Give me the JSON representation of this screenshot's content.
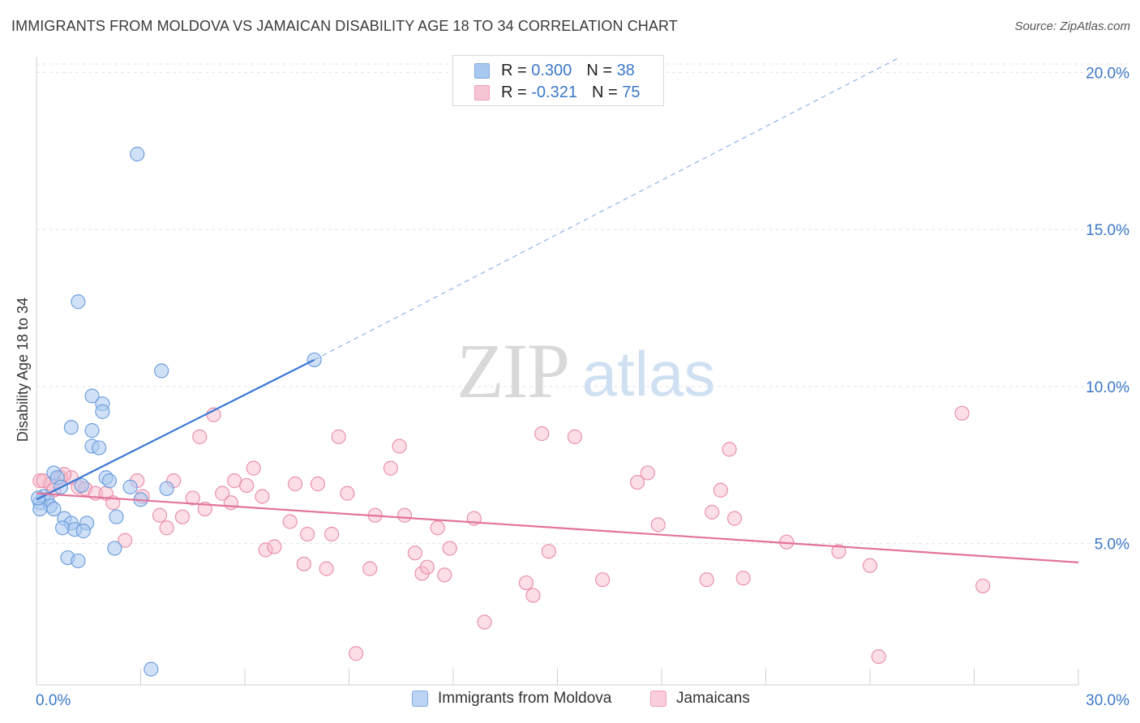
{
  "title": "IMMIGRANTS FROM MOLDOVA VS JAMAICAN DISABILITY AGE 18 TO 34 CORRELATION CHART",
  "source": "Source: ZipAtlas.com",
  "watermark": {
    "zip": "ZIP",
    "atlas": "atlas"
  },
  "legend": {
    "rows": [
      {
        "r_label": "R =",
        "r_value": "0.300",
        "n_label": "N =",
        "n_value": "38",
        "color": "#a9c8f0"
      },
      {
        "r_label": "R =",
        "r_value": "-0.321",
        "n_label": "N =",
        "n_value": "75",
        "color": "#f7b6c8"
      }
    ]
  },
  "bottom_legend": [
    "Immigrants from Moldova",
    "Jamaicans"
  ],
  "chart_data": {
    "type": "scatter",
    "title": "IMMIGRANTS FROM MOLDOVA VS JAMAICAN DISABILITY AGE 18 TO 34 CORRELATION CHART",
    "xlabel": "",
    "ylabel": "Disability Age 18 to 34",
    "xlim": [
      0,
      30
    ],
    "ylim": [
      0.5,
      20.5
    ],
    "x_tick_labels": [
      "0.0%",
      "30.0%"
    ],
    "y_tick_values": [
      5,
      10,
      15,
      20
    ],
    "y_tick_labels": [
      "5.0%",
      "10.0%",
      "15.0%",
      "20.0%"
    ],
    "grid": true,
    "legend_position": "top-center",
    "series": [
      {
        "name": "Immigrants from Moldova",
        "color": "#3b78d4",
        "fill": "#a9c8f0",
        "r": 0.3,
        "n": 38,
        "trend": {
          "x": [
            0,
            8.0
          ],
          "y": [
            6.4,
            10.85
          ],
          "extend_to": [
            24.8,
            20.45
          ]
        },
        "points": [
          [
            2.9,
            17.4
          ],
          [
            1.2,
            12.7
          ],
          [
            3.6,
            10.5
          ],
          [
            8.0,
            10.85
          ],
          [
            1.6,
            9.7
          ],
          [
            1.9,
            9.45
          ],
          [
            1.9,
            9.2
          ],
          [
            1.0,
            8.7
          ],
          [
            1.6,
            8.6
          ],
          [
            1.6,
            8.1
          ],
          [
            1.8,
            8.05
          ],
          [
            0.5,
            7.25
          ],
          [
            0.6,
            7.1
          ],
          [
            2.0,
            7.1
          ],
          [
            2.1,
            7.0
          ],
          [
            0.7,
            6.8
          ],
          [
            1.3,
            6.85
          ],
          [
            2.7,
            6.8
          ],
          [
            3.75,
            6.75
          ],
          [
            0.2,
            6.5
          ],
          [
            0.3,
            6.4
          ],
          [
            0.1,
            6.3
          ],
          [
            0.4,
            6.2
          ],
          [
            0.1,
            6.1
          ],
          [
            0.5,
            6.1
          ],
          [
            3.0,
            6.4
          ],
          [
            2.3,
            5.85
          ],
          [
            0.8,
            5.8
          ],
          [
            1.0,
            5.65
          ],
          [
            1.45,
            5.65
          ],
          [
            0.75,
            5.5
          ],
          [
            1.1,
            5.45
          ],
          [
            1.35,
            5.4
          ],
          [
            2.25,
            4.85
          ],
          [
            0.9,
            4.55
          ],
          [
            1.2,
            4.45
          ],
          [
            3.3,
            1.0
          ],
          [
            0.05,
            6.45
          ]
        ]
      },
      {
        "name": "Jamaicans",
        "color": "#e2739a",
        "fill": "#f7b6c8",
        "r": -0.321,
        "n": 75,
        "trend": {
          "x": [
            0,
            30
          ],
          "y": [
            6.6,
            4.4
          ]
        },
        "points": [
          [
            0.1,
            7.0
          ],
          [
            0.4,
            6.9
          ],
          [
            0.7,
            7.1
          ],
          [
            1.0,
            7.1
          ],
          [
            1.2,
            6.8
          ],
          [
            1.4,
            6.75
          ],
          [
            1.7,
            6.6
          ],
          [
            2.0,
            6.6
          ],
          [
            2.2,
            6.3
          ],
          [
            2.55,
            5.1
          ],
          [
            2.9,
            7.0
          ],
          [
            3.05,
            6.5
          ],
          [
            3.55,
            5.9
          ],
          [
            3.75,
            5.5
          ],
          [
            3.95,
            7.0
          ],
          [
            4.2,
            5.85
          ],
          [
            4.5,
            6.45
          ],
          [
            4.85,
            6.1
          ],
          [
            5.1,
            9.1
          ],
          [
            4.7,
            8.4
          ],
          [
            5.35,
            6.6
          ],
          [
            5.6,
            6.3
          ],
          [
            5.7,
            7.0
          ],
          [
            6.05,
            6.85
          ],
          [
            6.25,
            7.4
          ],
          [
            6.5,
            6.5
          ],
          [
            6.6,
            4.8
          ],
          [
            6.85,
            4.9
          ],
          [
            7.3,
            5.7
          ],
          [
            7.45,
            6.9
          ],
          [
            7.7,
            4.35
          ],
          [
            7.8,
            5.3
          ],
          [
            8.1,
            6.9
          ],
          [
            8.35,
            4.2
          ],
          [
            8.5,
            5.3
          ],
          [
            8.7,
            8.4
          ],
          [
            8.95,
            6.6
          ],
          [
            9.2,
            1.5
          ],
          [
            9.6,
            4.2
          ],
          [
            9.75,
            5.9
          ],
          [
            10.2,
            7.4
          ],
          [
            10.45,
            8.1
          ],
          [
            10.6,
            5.9
          ],
          [
            10.9,
            4.7
          ],
          [
            11.1,
            4.05
          ],
          [
            11.25,
            4.25
          ],
          [
            11.55,
            5.5
          ],
          [
            11.75,
            4.0
          ],
          [
            11.9,
            4.85
          ],
          [
            12.6,
            5.8
          ],
          [
            12.9,
            2.5
          ],
          [
            14.1,
            3.75
          ],
          [
            14.3,
            3.35
          ],
          [
            14.55,
            8.5
          ],
          [
            14.75,
            4.75
          ],
          [
            15.5,
            8.4
          ],
          [
            16.3,
            3.85
          ],
          [
            17.3,
            6.95
          ],
          [
            17.6,
            7.25
          ],
          [
            17.9,
            5.6
          ],
          [
            19.3,
            3.85
          ],
          [
            19.45,
            6.0
          ],
          [
            19.7,
            6.7
          ],
          [
            19.95,
            8.0
          ],
          [
            20.1,
            5.8
          ],
          [
            20.35,
            3.9
          ],
          [
            21.6,
            5.05
          ],
          [
            23.1,
            4.75
          ],
          [
            24.0,
            4.3
          ],
          [
            24.25,
            1.4
          ],
          [
            26.65,
            9.15
          ],
          [
            27.25,
            3.65
          ],
          [
            0.2,
            7.0
          ],
          [
            0.5,
            6.7
          ],
          [
            0.8,
            7.2
          ]
        ]
      }
    ]
  }
}
